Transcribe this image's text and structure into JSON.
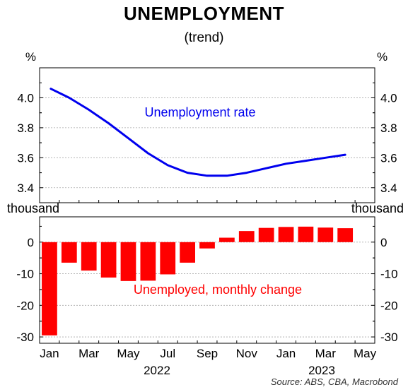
{
  "title": "UNEMPLOYMENT",
  "subtitle": "(trend)",
  "source": "Source: ABS, CBA, Macrobond",
  "chart_data": [
    {
      "type": "line",
      "unit_label": "%",
      "annotation": "Unemployment rate",
      "color": "#0000ee",
      "ylim": [
        3.3,
        4.2
      ],
      "yticks": [
        "4.0",
        "3.8",
        "3.6",
        "3.4"
      ],
      "ytick_values": [
        4.0,
        3.8,
        3.6,
        3.4
      ],
      "x": [
        "2022-01",
        "2022-02",
        "2022-03",
        "2022-04",
        "2022-05",
        "2022-06",
        "2022-07",
        "2022-08",
        "2022-09",
        "2022-10",
        "2022-11",
        "2022-12",
        "2023-01",
        "2023-02",
        "2023-03",
        "2023-04",
        "2023-05"
      ],
      "values": [
        4.06,
        4.0,
        3.92,
        3.83,
        3.73,
        3.63,
        3.55,
        3.5,
        3.48,
        3.48,
        3.5,
        3.53,
        3.56,
        3.58,
        3.6,
        3.62,
        null
      ],
      "grid": true
    },
    {
      "type": "bar",
      "unit_label": "thousand",
      "annotation": "Unemployed, monthly change",
      "color": "#ff0000",
      "ylim": [
        -32,
        8
      ],
      "yticks": [
        "0",
        "-10",
        "-20",
        "-30"
      ],
      "ytick_values": [
        0,
        -10,
        -20,
        -30
      ],
      "x": [
        "2022-01",
        "2022-02",
        "2022-03",
        "2022-04",
        "2022-05",
        "2022-06",
        "2022-07",
        "2022-08",
        "2022-09",
        "2022-10",
        "2022-11",
        "2022-12",
        "2023-01",
        "2023-02",
        "2023-03",
        "2023-04",
        "2023-05"
      ],
      "values": [
        -29.5,
        -6.5,
        -9.0,
        -11.2,
        -12.3,
        -12.2,
        -10.2,
        -6.5,
        -2.0,
        1.4,
        3.5,
        4.5,
        4.8,
        4.9,
        4.6,
        4.4,
        null
      ],
      "grid": true
    }
  ],
  "x_axis": {
    "month_labels": [
      "Jan",
      "Mar",
      "May",
      "Jul",
      "Sep",
      "Nov",
      "Jan",
      "Mar",
      "May"
    ],
    "month_label_dates": [
      "2022-01",
      "2022-03",
      "2022-05",
      "2022-07",
      "2022-09",
      "2022-11",
      "2023-01",
      "2023-03",
      "2023-05"
    ],
    "year_labels": [
      "2022",
      "2023"
    ]
  }
}
